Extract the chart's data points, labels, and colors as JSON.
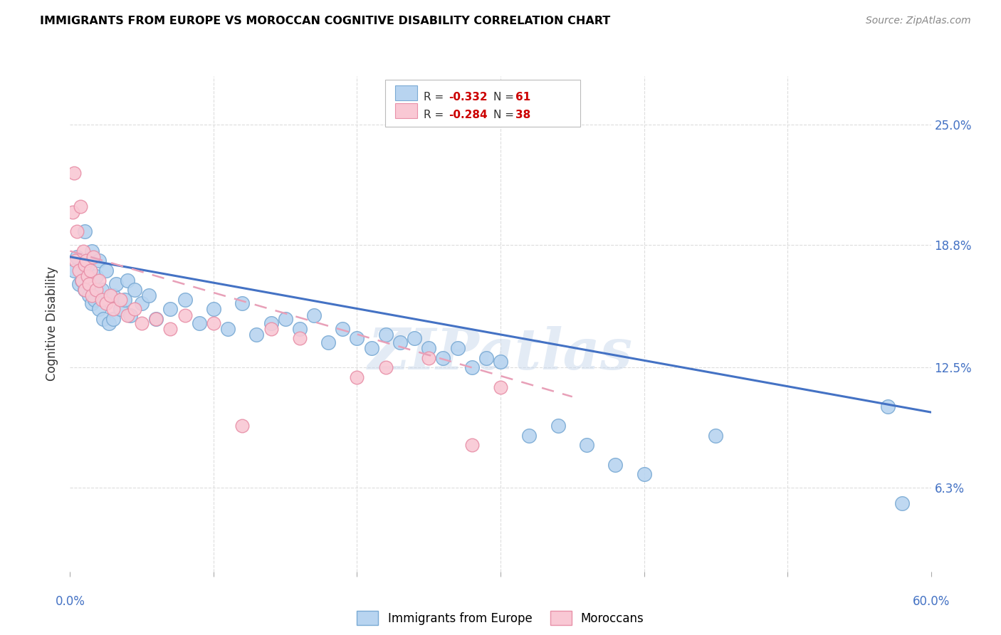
{
  "title": "IMMIGRANTS FROM EUROPE VS MOROCCAN COGNITIVE DISABILITY CORRELATION CHART",
  "source": "Source: ZipAtlas.com",
  "ylabel": "Cognitive Disability",
  "yticks": [
    6.3,
    12.5,
    18.8,
    25.0
  ],
  "ytick_labels": [
    "6.3%",
    "12.5%",
    "18.8%",
    "25.0%"
  ],
  "xmin": 0.0,
  "xmax": 60.0,
  "ymin": 2.0,
  "ymax": 27.5,
  "blue_color": "#B8D4F0",
  "blue_edge": "#7AAAD4",
  "pink_color": "#F9C8D4",
  "pink_edge": "#E890A8",
  "trend_blue": "#4472C4",
  "trend_pink_color": "#E8A0B8",
  "legend_R1": "-0.332",
  "legend_N1": "61",
  "legend_R2": "-0.284",
  "legend_N2": "38",
  "watermark": "ZIPatlas",
  "blue_points_x": [
    0.3,
    0.5,
    0.6,
    0.8,
    1.0,
    1.0,
    1.2,
    1.3,
    1.5,
    1.5,
    1.7,
    1.8,
    2.0,
    2.0,
    2.2,
    2.3,
    2.5,
    2.7,
    3.0,
    3.0,
    3.2,
    3.5,
    3.8,
    4.0,
    4.2,
    4.5,
    5.0,
    5.5,
    6.0,
    7.0,
    8.0,
    9.0,
    10.0,
    11.0,
    12.0,
    13.0,
    14.0,
    15.0,
    16.0,
    17.0,
    18.0,
    19.0,
    20.0,
    21.0,
    22.0,
    23.0,
    24.0,
    25.0,
    26.0,
    27.0,
    28.0,
    29.0,
    30.0,
    32.0,
    34.0,
    36.0,
    38.0,
    40.0,
    45.0,
    57.0,
    58.0
  ],
  "blue_points_y": [
    17.5,
    18.2,
    16.8,
    17.0,
    19.5,
    16.5,
    17.8,
    16.2,
    18.5,
    15.8,
    16.0,
    17.2,
    15.5,
    18.0,
    16.5,
    15.0,
    17.5,
    14.8,
    16.2,
    15.0,
    16.8,
    15.5,
    16.0,
    17.0,
    15.2,
    16.5,
    15.8,
    16.2,
    15.0,
    15.5,
    16.0,
    14.8,
    15.5,
    14.5,
    15.8,
    14.2,
    14.8,
    15.0,
    14.5,
    15.2,
    13.8,
    14.5,
    14.0,
    13.5,
    14.2,
    13.8,
    14.0,
    13.5,
    13.0,
    13.5,
    12.5,
    13.0,
    12.8,
    9.0,
    9.5,
    8.5,
    7.5,
    7.0,
    9.0,
    10.5,
    5.5
  ],
  "pink_points_x": [
    0.2,
    0.3,
    0.4,
    0.5,
    0.6,
    0.7,
    0.8,
    0.9,
    1.0,
    1.0,
    1.1,
    1.2,
    1.3,
    1.4,
    1.5,
    1.6,
    1.8,
    2.0,
    2.2,
    2.5,
    2.8,
    3.0,
    3.5,
    4.0,
    4.5,
    5.0,
    6.0,
    7.0,
    8.0,
    10.0,
    12.0,
    14.0,
    16.0,
    20.0,
    22.0,
    25.0,
    28.0,
    30.0
  ],
  "pink_points_y": [
    20.5,
    22.5,
    18.0,
    19.5,
    17.5,
    20.8,
    17.0,
    18.5,
    17.8,
    16.5,
    18.0,
    17.2,
    16.8,
    17.5,
    16.2,
    18.2,
    16.5,
    17.0,
    16.0,
    15.8,
    16.2,
    15.5,
    16.0,
    15.2,
    15.5,
    14.8,
    15.0,
    14.5,
    15.2,
    14.8,
    9.5,
    14.5,
    14.0,
    12.0,
    12.5,
    13.0,
    8.5,
    11.5
  ],
  "trend_blue_x0": 0.0,
  "trend_blue_y0": 18.2,
  "trend_blue_x1": 60.0,
  "trend_blue_y1": 10.2,
  "trend_pink_x0": 0.0,
  "trend_pink_y0": 18.5,
  "trend_pink_x1": 35.0,
  "trend_pink_y1": 11.0
}
